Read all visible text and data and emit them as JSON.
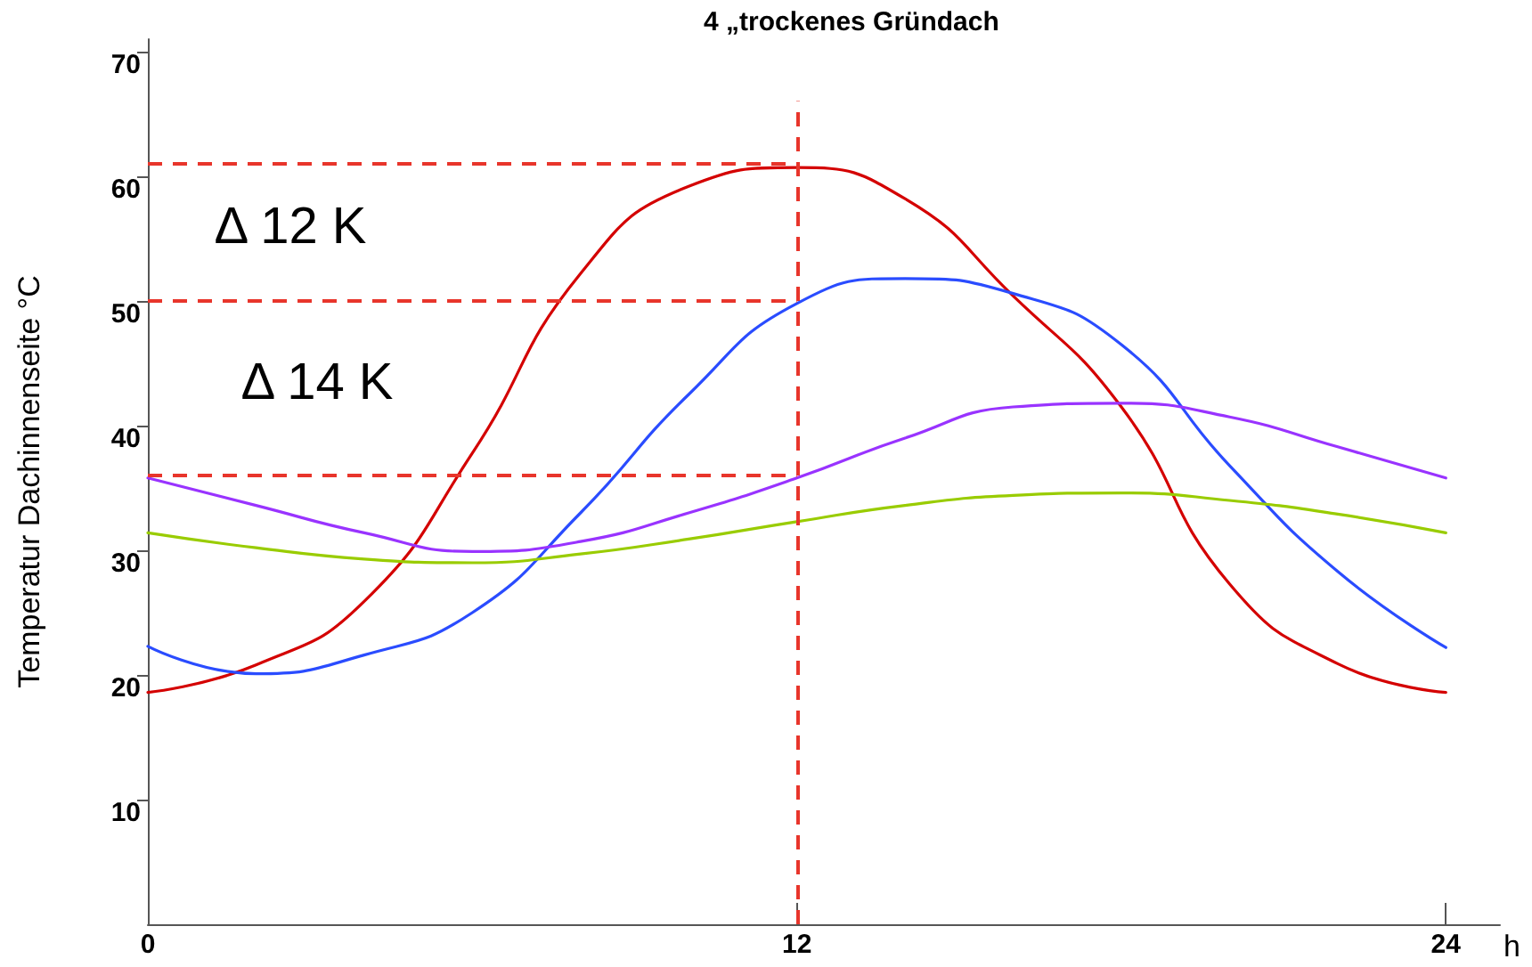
{
  "chart_data": {
    "type": "line",
    "title": "4 „trockenes Gründach",
    "xlabel": "h",
    "ylabel": "Temperatur Dachinnenseite °C",
    "x": [
      0,
      2,
      4,
      6,
      8,
      10,
      12,
      14,
      16,
      18,
      20,
      22,
      24
    ],
    "series": [
      {
        "color": "#d40000",
        "values": [
          18.6,
          20.8,
          25.9,
          37.8,
          52.2,
          59.2,
          60.7,
          58.2,
          50.4,
          41.5,
          27.3,
          20.9,
          18.6
        ]
      },
      {
        "color": "#2a4cff",
        "values": [
          22.3,
          20.1,
          21.6,
          25.0,
          33.0,
          42.5,
          49.8,
          51.8,
          50.6,
          46.5,
          36.8,
          28.3,
          22.2
        ]
      },
      {
        "color": "#9933ff",
        "values": [
          35.8,
          33.6,
          31.4,
          29.9,
          30.7,
          33.0,
          35.8,
          39.0,
          41.5,
          41.8,
          40.7,
          38.3,
          35.8
        ]
      },
      {
        "color": "#99cc00",
        "values": [
          31.4,
          30.2,
          29.3,
          29.0,
          29.7,
          30.9,
          32.3,
          33.6,
          34.4,
          34.6,
          34.0,
          32.9,
          31.4
        ]
      }
    ],
    "xlim": [
      0,
      25
    ],
    "xticks": [
      0,
      12,
      24
    ],
    "ylim": [
      0,
      71
    ],
    "yticks": [
      10,
      20,
      30,
      40,
      50,
      60,
      70
    ],
    "ref_lines": [
      {
        "axis": "x",
        "value": 12,
        "color": "#e8352b",
        "line_style": "dashed"
      },
      {
        "axis": "y",
        "value": 61,
        "color": "#e8352b",
        "line_style": "dashed"
      },
      {
        "axis": "y",
        "value": 50,
        "color": "#e8352b",
        "line_style": "dashed"
      },
      {
        "axis": "y",
        "value": 36,
        "color": "#e8352b",
        "line_style": "dashed"
      }
    ],
    "annotations": [
      "Δ 12 K",
      "Δ 14 K"
    ],
    "grid": false,
    "marker": "none",
    "line_style": "solid"
  }
}
